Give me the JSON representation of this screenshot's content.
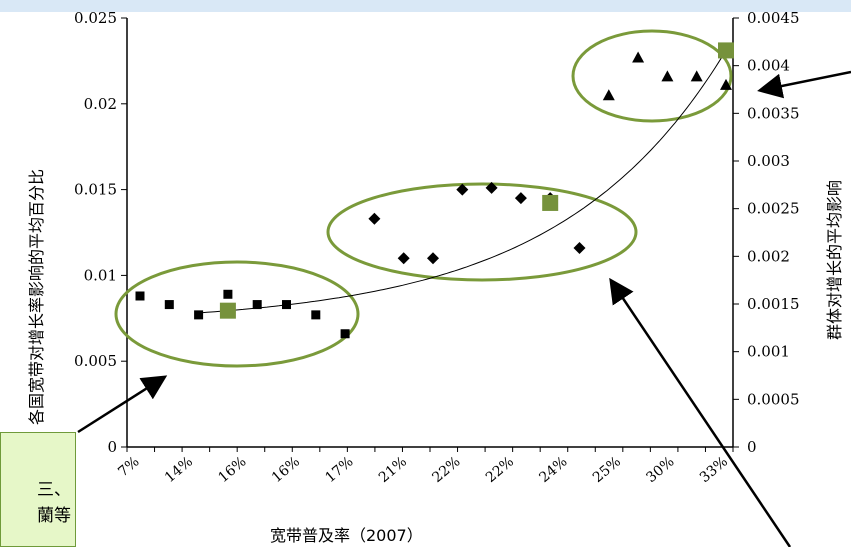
{
  "chart_data": {
    "type": "scatter",
    "xlabel": "宽带普及率（2007）",
    "ylabel_left": "各国宽带对增长率影响的平均百分比",
    "ylabel_right": "群体对增长的平均影响",
    "x_tick_labels": [
      "7%",
      "14%",
      "16%",
      "16%",
      "17%",
      "21%",
      "22%",
      "22%",
      "24%",
      "25%",
      "30%",
      "33%"
    ],
    "y_left": {
      "ylim": [
        0,
        0.025
      ],
      "ticks": [
        "0",
        "0.005",
        "0.01",
        "0.015",
        "0.02",
        "0.025"
      ]
    },
    "y_right": {
      "ylim": [
        0,
        0.0045
      ],
      "ticks": [
        "0",
        "0.0005",
        "0.001",
        "0.0015",
        "0.002",
        "0.0025",
        "0.003",
        "0.0035",
        "0.004",
        "0.0045"
      ]
    },
    "grid": false,
    "series": [
      {
        "marker": "square",
        "x_index": [
          0,
          1,
          2,
          3,
          4,
          5,
          6,
          7
        ],
        "values": [
          0.0088,
          0.0083,
          0.0077,
          0.0089,
          0.0083,
          0.0083,
          0.0077,
          0.0066
        ]
      },
      {
        "marker": "diamond",
        "x_index": [
          8,
          9,
          10,
          11,
          12,
          13,
          14,
          15
        ],
        "values": [
          0.0133,
          0.011,
          0.011,
          0.015,
          0.0151,
          0.0145,
          0.0145,
          0.0116
        ]
      },
      {
        "marker": "triangle",
        "x_index": [
          16,
          17,
          18,
          19,
          20
        ],
        "values": [
          0.0205,
          0.0227,
          0.0216,
          0.0216,
          0.0211
        ]
      },
      {
        "marker": "green-square",
        "axis": "right",
        "x_index": [
          3,
          14,
          20
        ],
        "values": [
          0.00143,
          0.00256,
          0.00416
        ]
      }
    ],
    "trend_curve": "exponential",
    "colors": {
      "cluster_ellipse": "#7a9a3a",
      "group_marker": "#76923c",
      "top_band": "#d9e8f6",
      "callout_fill": "#e6f7c8"
    }
  },
  "callout": {
    "text": "三、\n蘭等"
  }
}
